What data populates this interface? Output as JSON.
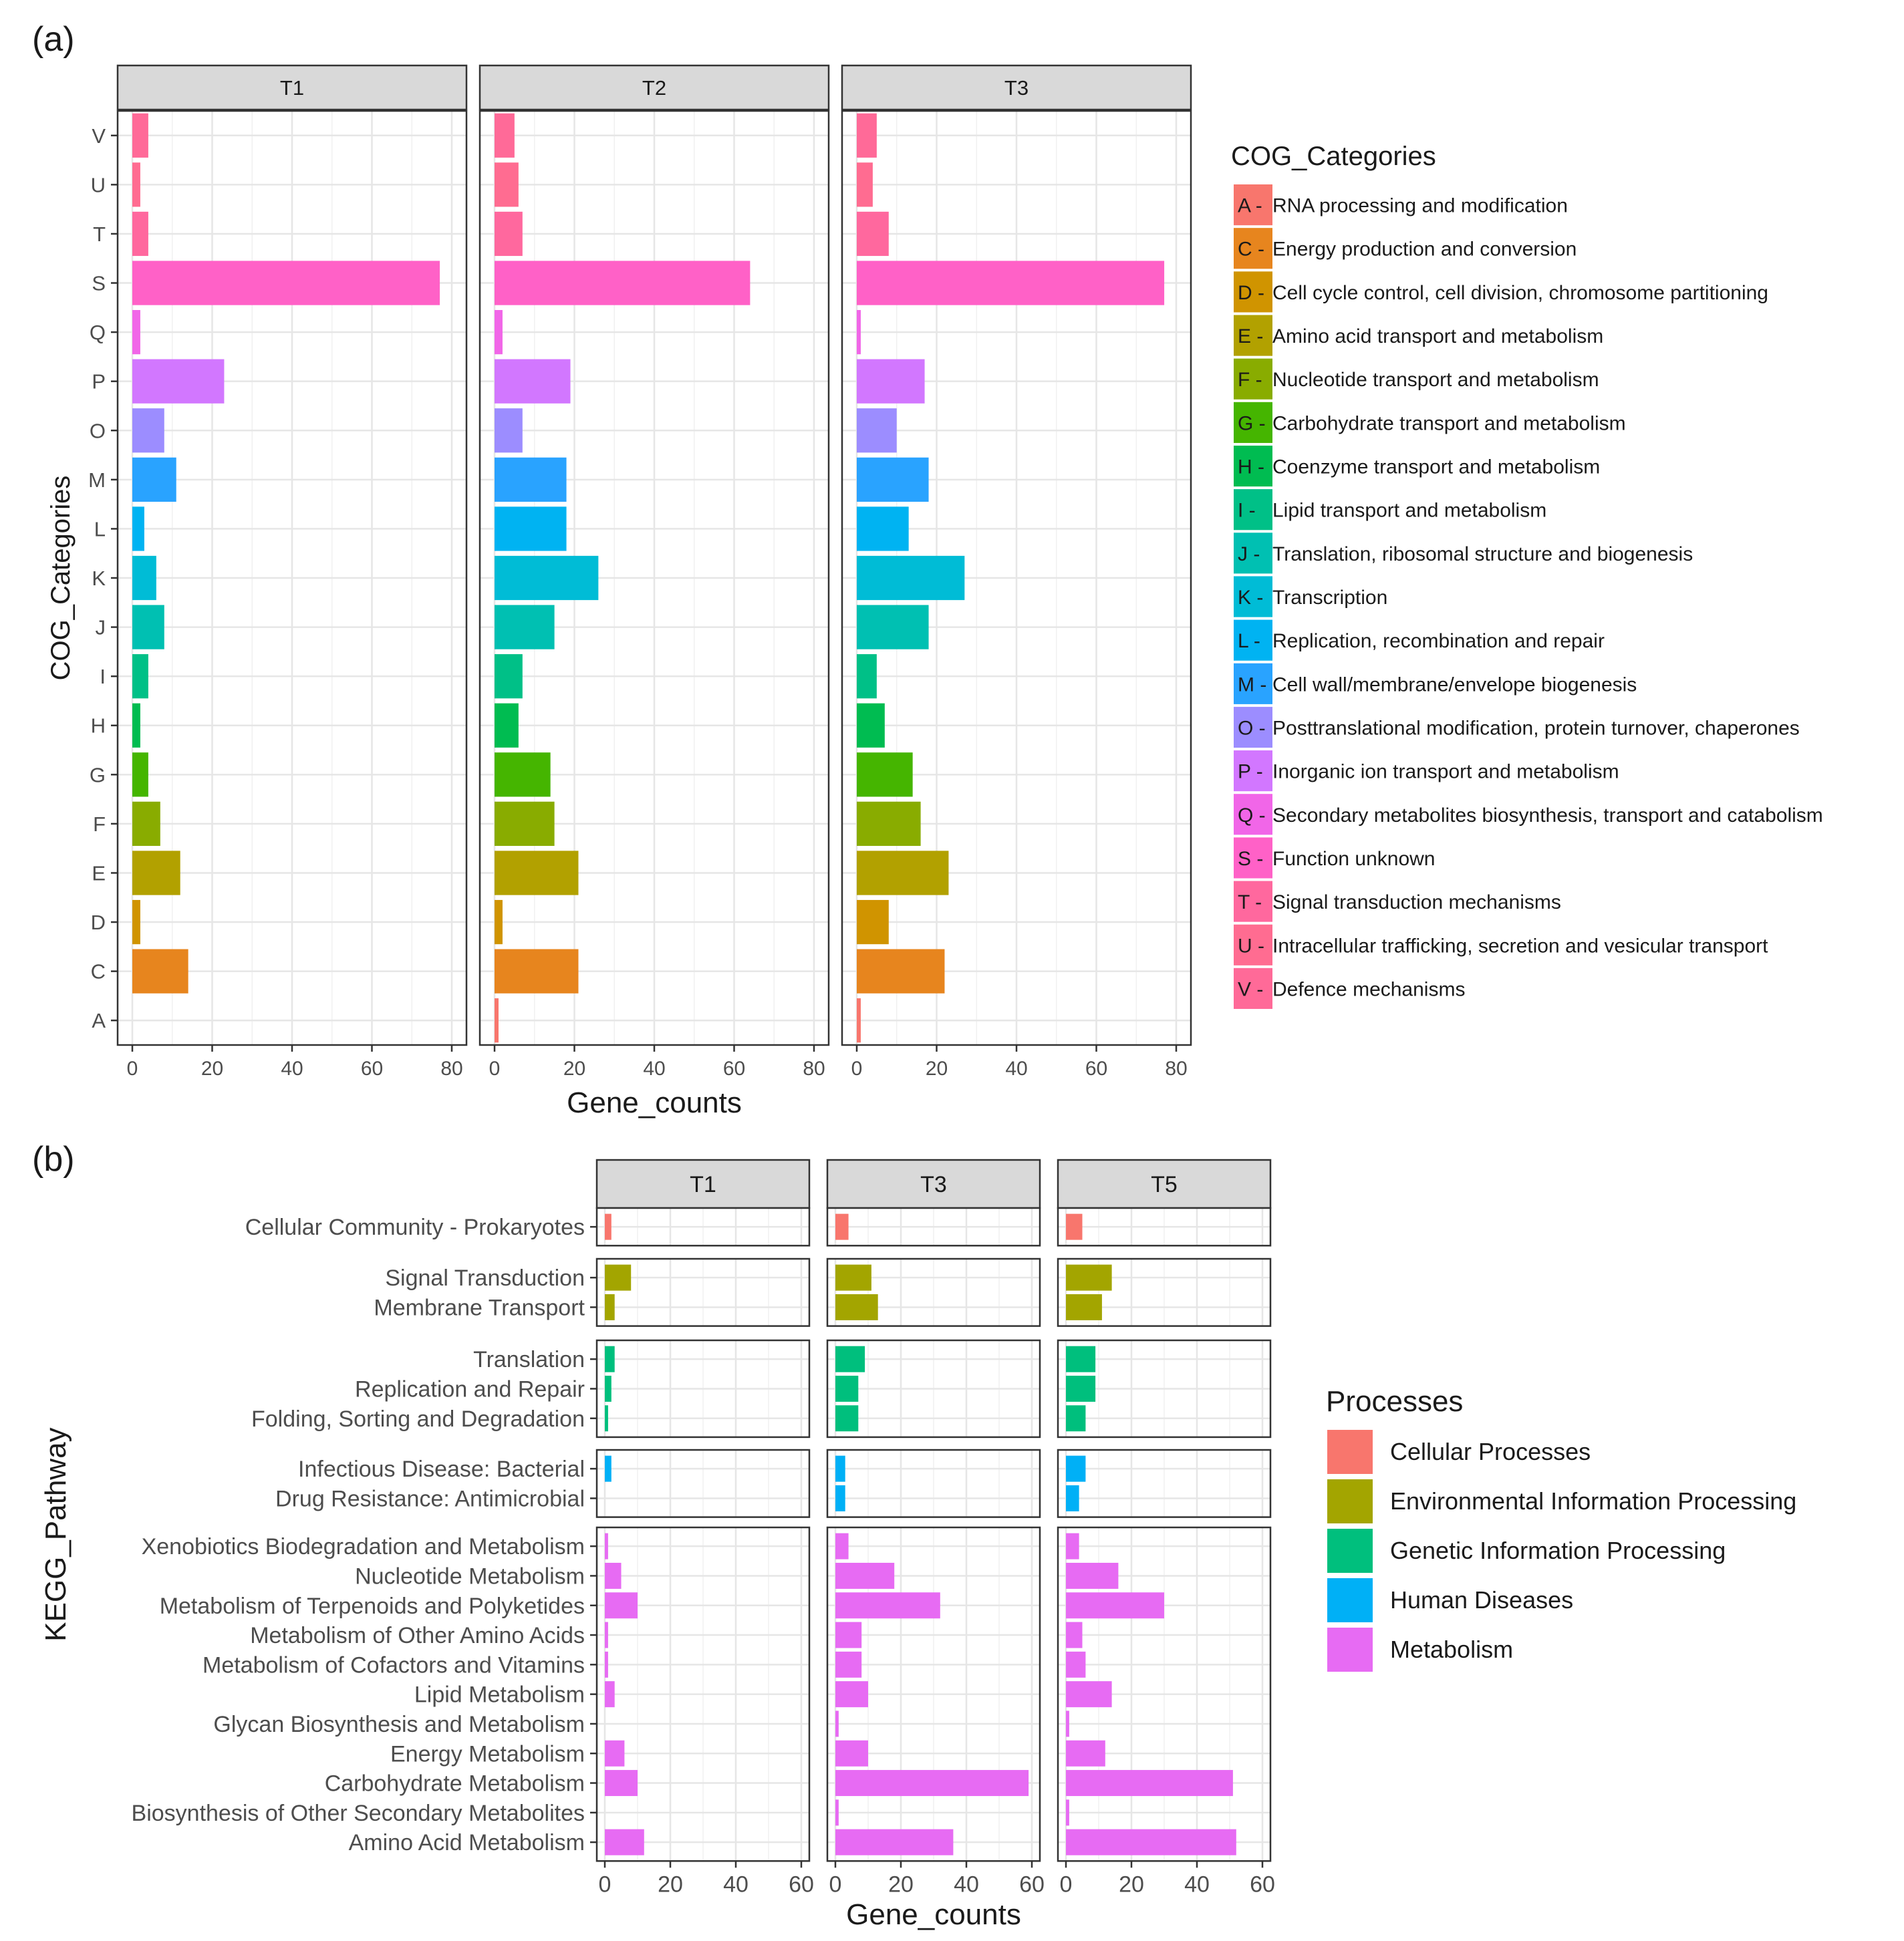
{
  "chart_data": [
    {
      "type": "bar",
      "orientation": "horizontal",
      "panel_label": "(a)",
      "facets": [
        "T1",
        "T2",
        "T3"
      ],
      "xlabel": "Gene_counts",
      "ylabel": "COG_Categories",
      "xlim": [
        0,
        80
      ],
      "xticks": [
        0,
        20,
        40,
        60,
        80
      ],
      "grid": true,
      "categories": [
        "A",
        "C",
        "D",
        "E",
        "F",
        "G",
        "H",
        "I",
        "J",
        "K",
        "L",
        "M",
        "O",
        "P",
        "Q",
        "S",
        "T",
        "U",
        "V"
      ],
      "series": [
        {
          "name": "T1",
          "values": [
            0,
            14,
            2,
            12,
            7,
            4,
            2,
            4,
            8,
            6,
            3,
            11,
            8,
            23,
            2,
            77,
            4,
            2,
            4
          ]
        },
        {
          "name": "T2",
          "values": [
            1,
            21,
            2,
            21,
            15,
            14,
            6,
            7,
            15,
            26,
            18,
            18,
            7,
            19,
            2,
            64,
            7,
            6,
            5
          ]
        },
        {
          "name": "T3",
          "values": [
            1,
            22,
            8,
            23,
            16,
            14,
            7,
            5,
            18,
            27,
            13,
            18,
            10,
            17,
            1,
            77,
            8,
            4,
            5
          ]
        }
      ],
      "colors": [
        "#F8766D",
        "#E7851E",
        "#D09400",
        "#B2A100",
        "#89AC00",
        "#45B500",
        "#00BC51",
        "#00C087",
        "#00C0B2",
        "#00BCD6",
        "#00B3F2",
        "#29A3FF",
        "#9C8DFF",
        "#D277FF",
        "#F166E8",
        "#FF61C7",
        "#FF689E",
        "#FF6C91",
        "#FF6A98"
      ],
      "legend_title": "COG_Categories",
      "legend_position": "right",
      "legend": [
        {
          "code": "A",
          "label": "RNA processing and modification"
        },
        {
          "code": "C",
          "label": "Energy production and conversion"
        },
        {
          "code": "D",
          "label": "Cell cycle control, cell division, chromosome partitioning"
        },
        {
          "code": "E",
          "label": "Amino acid transport and metabolism"
        },
        {
          "code": "F",
          "label": "Nucleotide transport and metabolism"
        },
        {
          "code": "G",
          "label": "Carbohydrate transport and metabolism"
        },
        {
          "code": "H",
          "label": "Coenzyme transport and metabolism"
        },
        {
          "code": "I",
          "label": "Lipid transport and metabolism"
        },
        {
          "code": "J",
          "label": "Translation, ribosomal structure and biogenesis"
        },
        {
          "code": "K",
          "label": "Transcription"
        },
        {
          "code": "L",
          "label": "Replication, recombination and repair"
        },
        {
          "code": "M",
          "label": "Cell wall/membrane/envelope biogenesis"
        },
        {
          "code": "O",
          "label": "Posttranslational modification, protein turnover, chaperones"
        },
        {
          "code": "P",
          "label": "Inorganic ion transport and metabolism"
        },
        {
          "code": "Q",
          "label": "Secondary metabolites biosynthesis, transport and catabolism"
        },
        {
          "code": "S",
          "label": "Function unknown"
        },
        {
          "code": "T",
          "label": "Signal transduction mechanisms"
        },
        {
          "code": "U",
          "label": "Intracellular trafficking, secretion and vesicular transport"
        },
        {
          "code": "V",
          "label": "Defence mechanisms"
        }
      ]
    },
    {
      "type": "bar",
      "orientation": "horizontal",
      "panel_label": "(b)",
      "facets": [
        "T1",
        "T3",
        "T5"
      ],
      "xlabel": "Gene_counts",
      "ylabel": "KEGG_Pathway",
      "xlim": [
        0,
        60
      ],
      "xticks": [
        0,
        20,
        40,
        60
      ],
      "grid": true,
      "legend_title": "Processes",
      "legend_position": "right",
      "groups": [
        {
          "process": "Cellular Processes",
          "color": "#F8766D",
          "pathways": [
            "Cellular Community - Prokaryotes"
          ],
          "values": [
            [
              2
            ],
            [
              4
            ],
            [
              5
            ]
          ]
        },
        {
          "process": "Environmental Information Processing",
          "color": "#A3A500",
          "pathways": [
            "Signal Transduction",
            "Membrane Transport"
          ],
          "values": [
            [
              8,
              3
            ],
            [
              11,
              13
            ],
            [
              14,
              11
            ]
          ]
        },
        {
          "process": "Genetic Information Processing",
          "color": "#00BF7D",
          "pathways": [
            "Translation",
            "Replication and Repair",
            "Folding, Sorting and Degradation"
          ],
          "values": [
            [
              3,
              2,
              1
            ],
            [
              9,
              7,
              7
            ],
            [
              9,
              9,
              6
            ]
          ]
        },
        {
          "process": "Human Diseases",
          "color": "#00B0F6",
          "pathways": [
            "Infectious Disease: Bacterial",
            "Drug Resistance: Antimicrobial"
          ],
          "values": [
            [
              2,
              0
            ],
            [
              3,
              3
            ],
            [
              6,
              4
            ]
          ]
        },
        {
          "process": "Metabolism",
          "color": "#E76BF3",
          "pathways": [
            "Xenobiotics Biodegradation and Metabolism",
            "Nucleotide Metabolism",
            "Metabolism of Terpenoids and Polyketides",
            "Metabolism of Other Amino Acids",
            "Metabolism of Cofactors and Vitamins",
            "Lipid Metabolism",
            "Glycan Biosynthesis and Metabolism",
            "Energy Metabolism",
            "Carbohydrate Metabolism",
            "Biosynthesis of Other Secondary Metabolites",
            "Amino Acid Metabolism"
          ],
          "values": [
            [
              1,
              5,
              10,
              1,
              1,
              3,
              0,
              6,
              10,
              0,
              12
            ],
            [
              4,
              18,
              32,
              8,
              8,
              10,
              1,
              10,
              59,
              1,
              36
            ],
            [
              4,
              16,
              30,
              5,
              6,
              14,
              1,
              12,
              51,
              1,
              52
            ]
          ]
        }
      ]
    }
  ]
}
